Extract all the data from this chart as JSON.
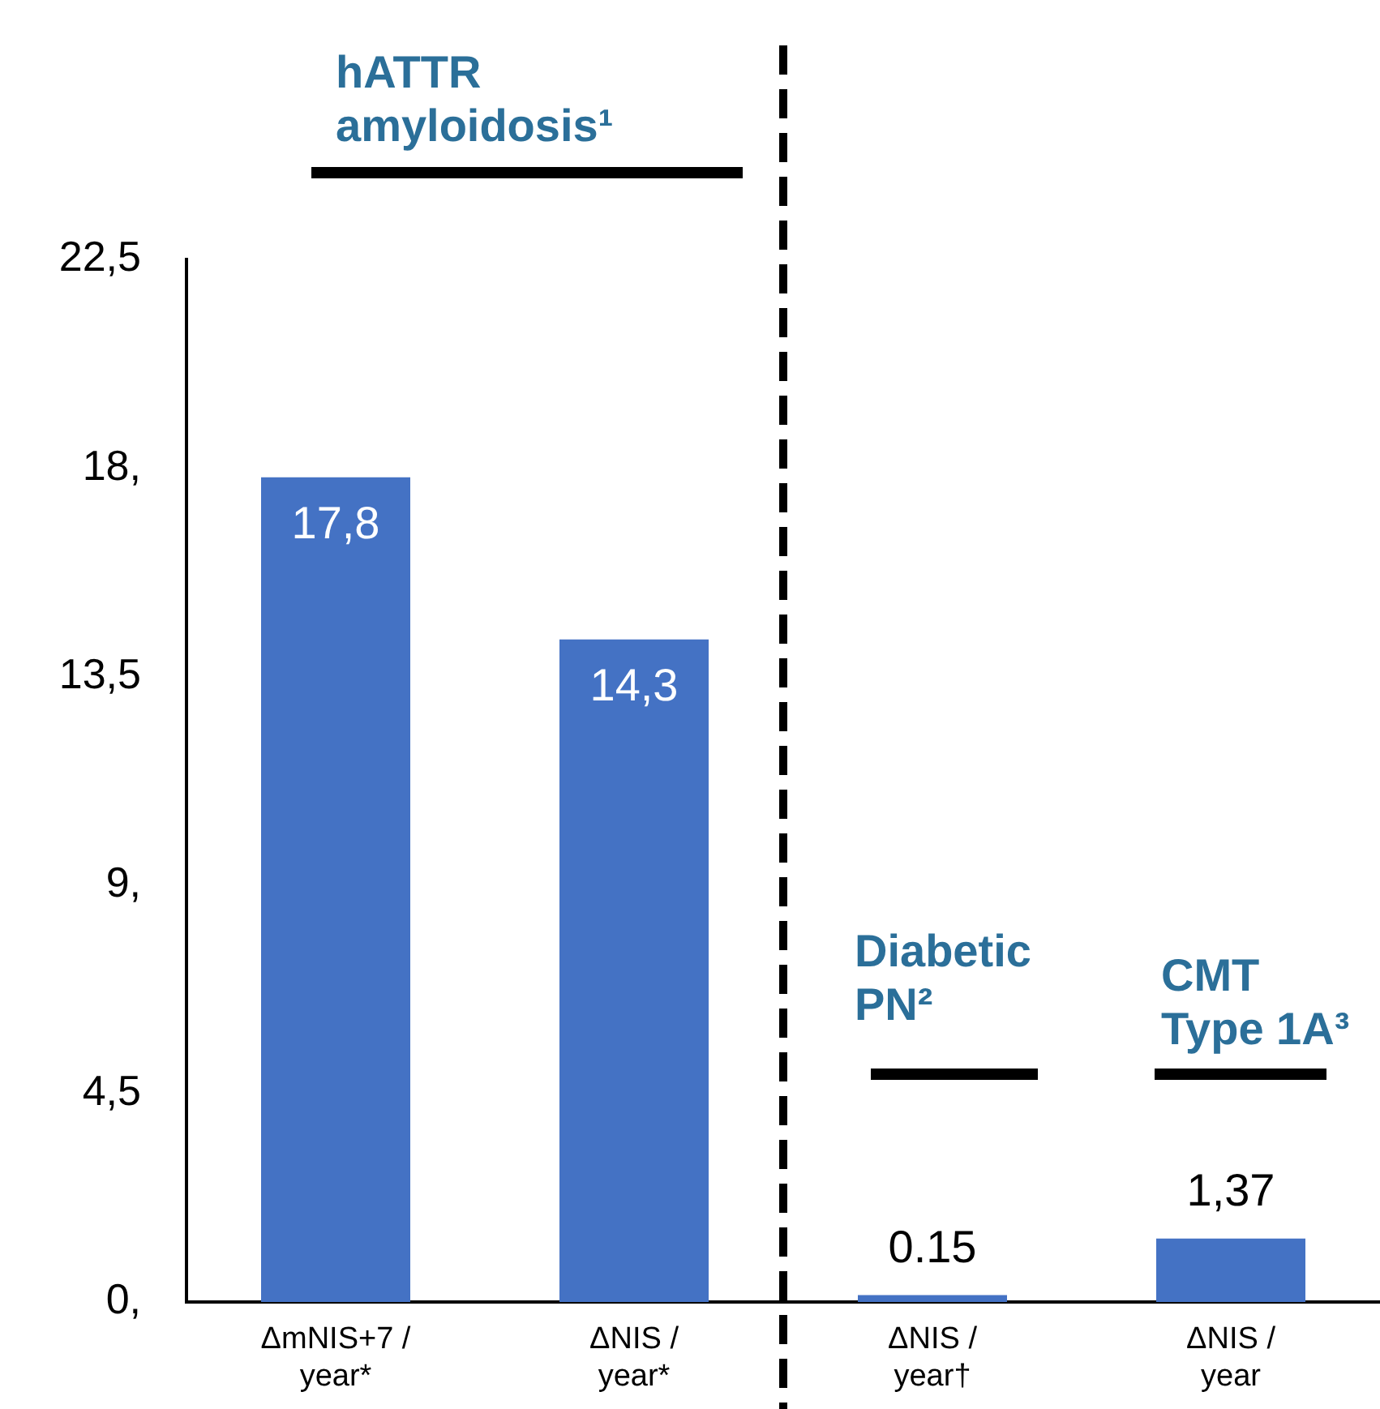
{
  "chart_data": {
    "type": "bar",
    "categories": [
      "ΔmNIS+7 /\nyear*",
      "ΔNIS /\nyear*",
      "ΔNIS /\nyear†",
      "ΔNIS /\nyear"
    ],
    "values": [
      17.8,
      14.3,
      0.15,
      1.37
    ],
    "value_labels": [
      "17,8",
      "14,3",
      "0.15",
      "1,37"
    ],
    "color": "#4472c4",
    "ylim": [
      0,
      22.5
    ],
    "yticks": [
      {
        "value": 0,
        "label": "0,"
      },
      {
        "value": 4.5,
        "label": "4,5"
      },
      {
        "value": 9,
        "label": "9,"
      },
      {
        "value": 13.5,
        "label": "13,5"
      },
      {
        "value": 18,
        "label": "18,"
      },
      {
        "value": 22.5,
        "label": "22,5"
      }
    ],
    "grid": false,
    "legend": false,
    "annotations": [
      "hATTR\namyloidosis¹",
      "Diabetic\nPN²",
      "CMT\nType 1A³"
    ]
  }
}
